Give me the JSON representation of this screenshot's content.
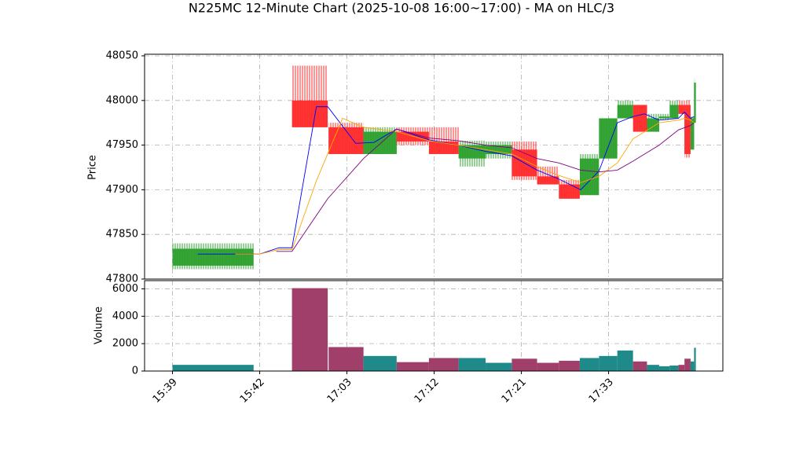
{
  "chart_data": [
    {
      "type": "candlestick",
      "title": "N225MC 12-Minute Chart (2025-10-08 16:00~17:00) - MA on HLC/3",
      "ylabel": "Price",
      "xlim": [
        -3.2,
        63.1
      ],
      "ylim": [
        47800,
        48050
      ],
      "yticks": [
        47800,
        47850,
        47900,
        47950,
        48000,
        48050
      ],
      "grid": true,
      "up_color": "#2ca02c",
      "down_color": "#ff2a2a",
      "candles": {
        "x0": [
          0,
          13.7,
          17.9,
          21.9,
          25.7,
          29.4,
          32.8,
          35.9,
          38.9,
          41.8,
          44.3,
          46.7,
          48.9,
          51.0,
          52.8,
          54.4,
          55.8,
          57.0,
          58.0,
          58.7,
          59.4,
          59.8
        ],
        "x1": [
          9.3,
          17.8,
          21.9,
          25.7,
          29.4,
          32.8,
          35.9,
          38.9,
          41.8,
          44.3,
          46.7,
          48.9,
          51.0,
          52.8,
          54.4,
          55.8,
          57.0,
          58.0,
          58.7,
          59.4,
          59.8,
          60.0
        ],
        "open": [
          47815,
          48000,
          47970,
          47940,
          47965,
          47954,
          47935,
          47940,
          47945,
          47915,
          47906,
          47894,
          47935,
          47980,
          47995,
          47965,
          47980,
          47980,
          47995,
          47995,
          47945,
          47975
        ],
        "high": [
          47840,
          48039,
          47975,
          47970,
          47970,
          47970,
          47955,
          47954,
          47954,
          47926,
          47911,
          47940,
          47980,
          48000,
          47995,
          47985,
          47985,
          48000,
          48000,
          48000,
          47982,
          48025
        ],
        "low": [
          47811,
          47970,
          47940,
          47940,
          47950,
          47940,
          47926,
          47935,
          47911,
          47906,
          47890,
          47894,
          47935,
          47980,
          47965,
          47965,
          47978,
          47980,
          47985,
          47936,
          47945,
          47970
        ],
        "close": [
          47834,
          47970,
          47940,
          47965,
          47954,
          47940,
          47950,
          47950,
          47915,
          47906,
          47890,
          47935,
          47980,
          47995,
          47965,
          47980,
          47982,
          47995,
          47985,
          47940,
          47980,
          48020
        ]
      },
      "series": [
        {
          "color": "#0000ff",
          "x": [
            2.9,
            10,
            12.2,
            13.7,
            16.5,
            17.8,
            21.0,
            23.1,
            25.7,
            29.4,
            32.7,
            35.9,
            38.9,
            41.8,
            44.3,
            46.8,
            48.9,
            51.0,
            52.8,
            54.1,
            55.8,
            58.0,
            58.7,
            59.4,
            59.8
          ],
          "values": [
            47828,
            47828,
            47835,
            47835,
            47993,
            47993,
            47952,
            47953,
            47968,
            47956,
            47950,
            47943,
            47938,
            47922,
            47912,
            47900,
            47921,
            47975,
            47982,
            47985,
            47978,
            47980,
            47987,
            47980,
            47982
          ]
        },
        {
          "color": "#ffa500",
          "x": [
            7.2,
            10,
            12.2,
            13.7,
            16.5,
            19.5,
            21.9,
            25.7,
            29.4,
            32.7,
            35.9,
            38.9,
            41.8,
            44.3,
            46.8,
            48.9,
            51.0,
            52.8,
            55.8,
            58.0,
            58.7,
            59.4,
            59.8
          ],
          "values": [
            47828,
            47828,
            47833,
            47833,
            47910,
            47980,
            47970,
            47965,
            47955,
            47950,
            47945,
            47940,
            47926,
            47916,
            47908,
            47915,
            47930,
            47957,
            47975,
            47978,
            47980,
            47978,
            47975
          ]
        },
        {
          "color": "#800080",
          "x": [
            11.9,
            13.7,
            17.8,
            21.9,
            25.7,
            29.4,
            32.7,
            35.9,
            38.9,
            41.8,
            44.3,
            46.8,
            48.9,
            51.0,
            52.8,
            55.8,
            58.0,
            59.4,
            59.8
          ],
          "values": [
            47831,
            47831,
            47890,
            47935,
            47968,
            47958,
            47955,
            47950,
            47947,
            47935,
            47930,
            47922,
            47920,
            47922,
            47932,
            47950,
            47967,
            47972,
            47975
          ]
        }
      ]
    },
    {
      "type": "bar",
      "ylabel": "Volume",
      "xlim": [
        -3.2,
        63.1
      ],
      "ylim": [
        0,
        6600
      ],
      "yticks": [
        0,
        2000,
        4000,
        6000
      ],
      "grid": true,
      "xticks": [
        {
          "value": 0,
          "label": "15:39"
        },
        {
          "value": 10,
          "label": "15:42"
        },
        {
          "value": 20,
          "label": "17:03"
        },
        {
          "value": 30,
          "label": "17:12"
        },
        {
          "value": 40,
          "label": "17:21"
        },
        {
          "value": 50,
          "label": "17:33"
        }
      ],
      "up_color": "#1f8a8a",
      "down_color": "#a0406a",
      "values": [
        450,
        6050,
        1750,
        1100,
        650,
        950,
        950,
        600,
        900,
        600,
        750,
        950,
        1100,
        1500,
        700,
        450,
        350,
        400,
        450,
        900,
        700,
        1700
      ]
    }
  ]
}
